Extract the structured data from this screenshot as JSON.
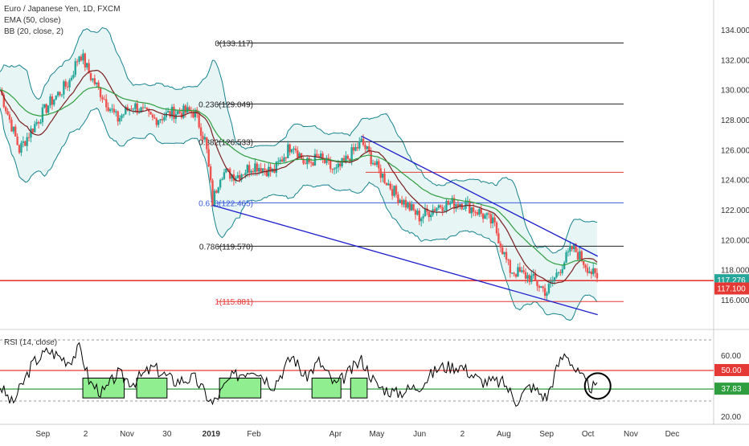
{
  "header": {
    "symbol_title": "Euro / Japanese Yen, 1D, FXCM",
    "ema_label": "EMA (50, close)",
    "bb_label": "BB (20, close, 2)",
    "rsi_label": "RSI (14, close)"
  },
  "colors": {
    "candle_up": "#26a69a",
    "candle_down": "#ef5350",
    "ema": "#2e9e3f",
    "bb_basis": "#7a1f1f",
    "bb_band": "#17848f",
    "bb_fill": "#e7f5f4",
    "channel": "#1e1ecc",
    "price_line": "#e53935",
    "rsi_line": "#000000",
    "rsi_box": "#90ee90",
    "price_tag_green": "#26a69a",
    "price_tag_red": "#e53935"
  },
  "chart_data": [
    {
      "type": "candlestick",
      "title": "Euro / Japanese Yen, 1D, FXCM",
      "x_tick_labels": [
        "Sep",
        "2",
        "Nov",
        "30",
        "2019",
        "Feb",
        "Apr",
        "May",
        "Jun",
        "2",
        "Aug",
        "Sep",
        "Oct",
        "Nov",
        "Dec"
      ],
      "y_tick_labels": [
        "134.000",
        "132.000",
        "130.000",
        "128.000",
        "126.000",
        "124.000",
        "122.000",
        "120.000",
        "118.000",
        "116.000"
      ],
      "ylim": [
        115.0,
        135.2
      ],
      "fib_levels": [
        {
          "label": "0(133.117)",
          "value": 133.117
        },
        {
          "label": "0.236(129.049)",
          "value": 129.049
        },
        {
          "label": "0.382(126.533)",
          "value": 126.533
        },
        {
          "label": "0.618(122.465)",
          "value": 122.465
        },
        {
          "label": "0.786(119.570)",
          "value": 119.57
        },
        {
          "label": "1(115.881)",
          "value": 115.881
        }
      ],
      "horizontal_levels": [
        124.5,
        117.276
      ],
      "channel_upper": [
        {
          "date": "2019-04-20",
          "value": 126.9
        },
        {
          "date": "2019-10-08",
          "value": 118.9
        }
      ],
      "channel_lower": [
        {
          "date": "2019-01-02",
          "value": 122.3
        },
        {
          "date": "2019-10-08",
          "value": 115.0
        }
      ],
      "close_points": [
        {
          "date": "2018-08-01",
          "value": 130.0
        },
        {
          "date": "2018-08-15",
          "value": 126.0
        },
        {
          "date": "2018-08-25",
          "value": 127.5
        },
        {
          "date": "2018-09-05",
          "value": 129.0
        },
        {
          "date": "2018-09-20",
          "value": 130.5
        },
        {
          "date": "2018-09-28",
          "value": 132.5
        },
        {
          "date": "2018-10-05",
          "value": 131.0
        },
        {
          "date": "2018-10-15",
          "value": 129.5
        },
        {
          "date": "2018-10-25",
          "value": 128.0
        },
        {
          "date": "2018-11-05",
          "value": 129.0
        },
        {
          "date": "2018-11-20",
          "value": 128.0
        },
        {
          "date": "2018-12-05",
          "value": 128.5
        },
        {
          "date": "2018-12-20",
          "value": 128.5
        },
        {
          "date": "2018-12-28",
          "value": 126.5
        },
        {
          "date": "2019-01-02",
          "value": 122.5
        },
        {
          "date": "2019-01-08",
          "value": 124.5
        },
        {
          "date": "2019-01-20",
          "value": 124.3
        },
        {
          "date": "2019-02-01",
          "value": 125.0
        },
        {
          "date": "2019-02-15",
          "value": 124.5
        },
        {
          "date": "2019-03-01",
          "value": 126.5
        },
        {
          "date": "2019-03-10",
          "value": 125.0
        },
        {
          "date": "2019-03-20",
          "value": 125.5
        },
        {
          "date": "2019-04-01",
          "value": 124.5
        },
        {
          "date": "2019-04-20",
          "value": 126.5
        },
        {
          "date": "2019-05-01",
          "value": 124.8
        },
        {
          "date": "2019-05-15",
          "value": 123.0
        },
        {
          "date": "2019-06-01",
          "value": 121.5
        },
        {
          "date": "2019-06-15",
          "value": 122.3
        },
        {
          "date": "2019-07-01",
          "value": 122.5
        },
        {
          "date": "2019-07-15",
          "value": 121.8
        },
        {
          "date": "2019-07-25",
          "value": 121.0
        },
        {
          "date": "2019-08-05",
          "value": 118.0
        },
        {
          "date": "2019-08-20",
          "value": 117.5
        },
        {
          "date": "2019-09-01",
          "value": 116.5
        },
        {
          "date": "2019-09-10",
          "value": 118.0
        },
        {
          "date": "2019-09-20",
          "value": 119.5
        },
        {
          "date": "2019-10-08",
          "value": 117.276
        }
      ],
      "last_price": "117.276",
      "reference_price": "117.100"
    },
    {
      "type": "line",
      "title": "RSI (14, close)",
      "y_tick_labels": [
        "60.00",
        "20.00"
      ],
      "ylim": [
        14,
        76
      ],
      "reference_levels": [
        {
          "label": "50.00",
          "value": 50
        },
        {
          "label": "37.83",
          "value": 37.83
        }
      ],
      "dashed_levels": [
        70,
        30
      ],
      "rsi_points": [
        {
          "date": "2018-08-01",
          "value": 40
        },
        {
          "date": "2018-08-10",
          "value": 28
        },
        {
          "date": "2018-08-25",
          "value": 55
        },
        {
          "date": "2018-09-05",
          "value": 63
        },
        {
          "date": "2018-09-20",
          "value": 56
        },
        {
          "date": "2018-09-28",
          "value": 65
        },
        {
          "date": "2018-10-05",
          "value": 42
        },
        {
          "date": "2018-10-15",
          "value": 35
        },
        {
          "date": "2018-10-25",
          "value": 48
        },
        {
          "date": "2018-11-05",
          "value": 42
        },
        {
          "date": "2018-11-20",
          "value": 52
        },
        {
          "date": "2018-12-05",
          "value": 43
        },
        {
          "date": "2018-12-20",
          "value": 45
        },
        {
          "date": "2019-01-02",
          "value": 28
        },
        {
          "date": "2019-01-15",
          "value": 45
        },
        {
          "date": "2019-02-01",
          "value": 52
        },
        {
          "date": "2019-02-15",
          "value": 40
        },
        {
          "date": "2019-03-01",
          "value": 60
        },
        {
          "date": "2019-03-10",
          "value": 45
        },
        {
          "date": "2019-03-20",
          "value": 56
        },
        {
          "date": "2019-04-01",
          "value": 40
        },
        {
          "date": "2019-04-20",
          "value": 57
        },
        {
          "date": "2019-05-01",
          "value": 40
        },
        {
          "date": "2019-05-15",
          "value": 35
        },
        {
          "date": "2019-06-01",
          "value": 40
        },
        {
          "date": "2019-06-15",
          "value": 52
        },
        {
          "date": "2019-07-01",
          "value": 53
        },
        {
          "date": "2019-07-15",
          "value": 43
        },
        {
          "date": "2019-08-01",
          "value": 42
        },
        {
          "date": "2019-08-10",
          "value": 30
        },
        {
          "date": "2019-08-20",
          "value": 40
        },
        {
          "date": "2019-09-01",
          "value": 32
        },
        {
          "date": "2019-09-10",
          "value": 55
        },
        {
          "date": "2019-09-15",
          "value": 62
        },
        {
          "date": "2019-09-22",
          "value": 50
        },
        {
          "date": "2019-10-01",
          "value": 40
        },
        {
          "date": "2019-10-08",
          "value": 37.83
        }
      ]
    }
  ]
}
